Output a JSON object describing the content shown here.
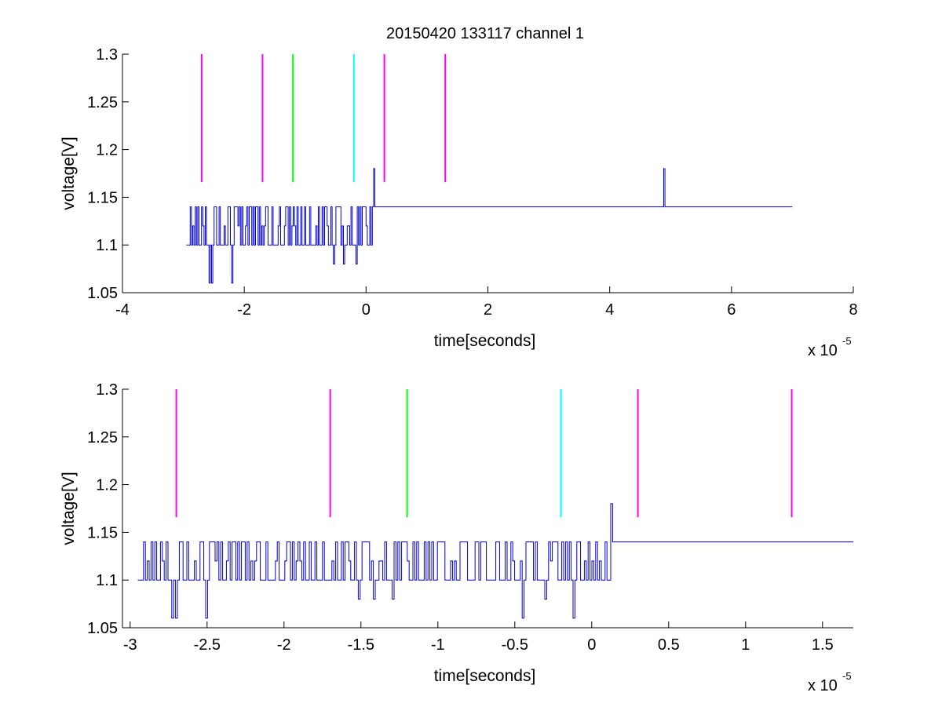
{
  "figure": {
    "title": "20150420 133117 channel 1",
    "background": "#ffffff"
  },
  "chart_data": [
    {
      "type": "line",
      "title": "20150420 133117 channel 1",
      "xlabel": "time[seconds]",
      "ylabel": "voltage[V]",
      "x_exponent_label": "x 10",
      "x_exponent_power": "-5",
      "xlim": [
        -4,
        8
      ],
      "ylim": [
        1.05,
        1.3
      ],
      "xticks": [
        -4,
        -2,
        0,
        2,
        4,
        6,
        8
      ],
      "xtick_labels": [
        "-4",
        "-2",
        "0",
        "2",
        "4",
        "6",
        "8"
      ],
      "yticks": [
        1.05,
        1.1,
        1.15,
        1.2,
        1.25,
        1.3
      ],
      "ytick_labels": [
        "1.05",
        "1.1",
        "1.15",
        "1.2",
        "1.25",
        "1.3"
      ],
      "grid": false,
      "series": [
        {
          "color": "#0000cc",
          "signal": {
            "x_start": -2.95,
            "x_end": 7.0,
            "baseline": 1.1,
            "high_level": 1.14,
            "low_level": 1.06,
            "spikes": [
              {
                "x": 0.12,
                "y": 1.18
              },
              {
                "x": 4.87,
                "y": 1.18
              }
            ]
          }
        }
      ],
      "markers": [
        {
          "x": -2.7,
          "y_min": 1.166,
          "y_max": 1.3,
          "color": "#ff00ff"
        },
        {
          "x": -1.7,
          "y_min": 1.166,
          "y_max": 1.3,
          "color": "#ff00ff"
        },
        {
          "x": -1.2,
          "y_min": 1.166,
          "y_max": 1.3,
          "color": "#00ff00"
        },
        {
          "x": -0.2,
          "y_min": 1.166,
          "y_max": 1.3,
          "color": "#00ffff"
        },
        {
          "x": 0.3,
          "y_min": 1.166,
          "y_max": 1.3,
          "color": "#ff00ff"
        },
        {
          "x": 1.3,
          "y_min": 1.166,
          "y_max": 1.3,
          "color": "#ff00ff"
        }
      ]
    },
    {
      "type": "line",
      "title": "",
      "xlabel": "time[seconds]",
      "ylabel": "voltage[V]",
      "x_exponent_label": "x 10",
      "x_exponent_power": "-5",
      "xlim": [
        -3.05,
        1.7
      ],
      "ylim": [
        1.05,
        1.3
      ],
      "xticks": [
        -3,
        -2.5,
        -2,
        -1.5,
        -1,
        -0.5,
        0,
        0.5,
        1,
        1.5
      ],
      "xtick_labels": [
        "-3",
        "-2.5",
        "-2",
        "-1.5",
        "-1",
        "-0.5",
        "0",
        "0.5",
        "1",
        "1.5"
      ],
      "yticks": [
        1.05,
        1.1,
        1.15,
        1.2,
        1.25,
        1.3
      ],
      "ytick_labels": [
        "1.05",
        "1.1",
        "1.15",
        "1.2",
        "1.25",
        "1.3"
      ],
      "grid": false,
      "series": [
        {
          "color": "#0000cc",
          "signal": {
            "x_start": -2.95,
            "x_end": 1.7,
            "baseline": 1.1,
            "high_level": 1.14,
            "low_level": 1.06,
            "spikes": [
              {
                "x": 0.12,
                "y": 1.18
              }
            ]
          }
        }
      ],
      "markers": [
        {
          "x": -2.7,
          "y_min": 1.166,
          "y_max": 1.3,
          "color": "#ff00ff"
        },
        {
          "x": -1.7,
          "y_min": 1.166,
          "y_max": 1.3,
          "color": "#ff00ff"
        },
        {
          "x": -1.2,
          "y_min": 1.166,
          "y_max": 1.3,
          "color": "#00ff00"
        },
        {
          "x": -0.2,
          "y_min": 1.166,
          "y_max": 1.3,
          "color": "#00ffff"
        },
        {
          "x": 0.3,
          "y_min": 1.166,
          "y_max": 1.3,
          "color": "#ff00ff"
        },
        {
          "x": 1.3,
          "y_min": 1.166,
          "y_max": 1.3,
          "color": "#ff00ff"
        }
      ]
    }
  ]
}
